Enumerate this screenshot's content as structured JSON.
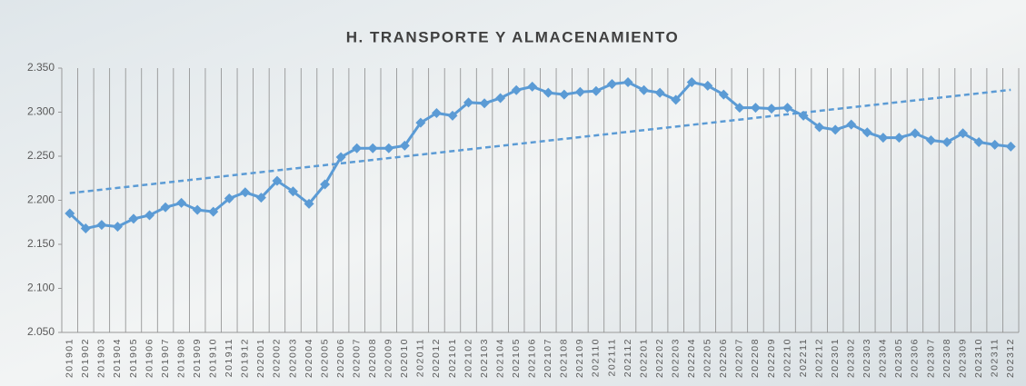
{
  "chart_data": {
    "type": "line",
    "title": "H. TRANSPORTE Y ALMACENAMIENTO",
    "categories": [
      "201901",
      "201902",
      "201903",
      "201904",
      "201905",
      "201906",
      "201907",
      "201908",
      "201909",
      "201910",
      "201911",
      "201912",
      "202001",
      "202002",
      "202003",
      "202004",
      "202005",
      "202006",
      "202007",
      "202008",
      "202009",
      "202010",
      "202011",
      "202012",
      "202101",
      "202102",
      "202103",
      "202104",
      "202105",
      "202106",
      "202107",
      "202108",
      "202109",
      "202110",
      "202111",
      "202112",
      "202201",
      "202202",
      "202203",
      "202204",
      "202205",
      "202206",
      "202207",
      "202208",
      "202209",
      "202210",
      "202211",
      "202212",
      "202301",
      "202302",
      "202303",
      "202304",
      "202305",
      "202306",
      "202307",
      "202308",
      "202309",
      "202310",
      "202311",
      "202312"
    ],
    "values": [
      2185,
      2168,
      2172,
      2170,
      2179,
      2183,
      2192,
      2197,
      2189,
      2187,
      2202,
      2209,
      2203,
      2222,
      2210,
      2196,
      2218,
      2249,
      2259,
      2259,
      2259,
      2262,
      2288,
      2299,
      2296,
      2311,
      2310,
      2316,
      2325,
      2329,
      2322,
      2320,
      2323,
      2324,
      2332,
      2334,
      2325,
      2322,
      2314,
      2334,
      2330,
      2320,
      2305,
      2305,
      2304,
      2305,
      2296,
      2283,
      2280,
      2286,
      2277,
      2271,
      2271,
      2276,
      2268,
      2266,
      2276,
      2266,
      2263,
      2261
    ],
    "color": "#5b9bd5",
    "ylim": [
      2050,
      2350
    ],
    "yticks": [
      {
        "value": 2050,
        "label": "2.050"
      },
      {
        "value": 2100,
        "label": "2.100"
      },
      {
        "value": 2150,
        "label": "2.150"
      },
      {
        "value": 2200,
        "label": "2.200"
      },
      {
        "value": 2250,
        "label": "2.250"
      },
      {
        "value": 2300,
        "label": "2.300"
      },
      {
        "value": 2350,
        "label": "2.350"
      }
    ],
    "grid": "x",
    "trendline": true,
    "marker": "diamond"
  }
}
